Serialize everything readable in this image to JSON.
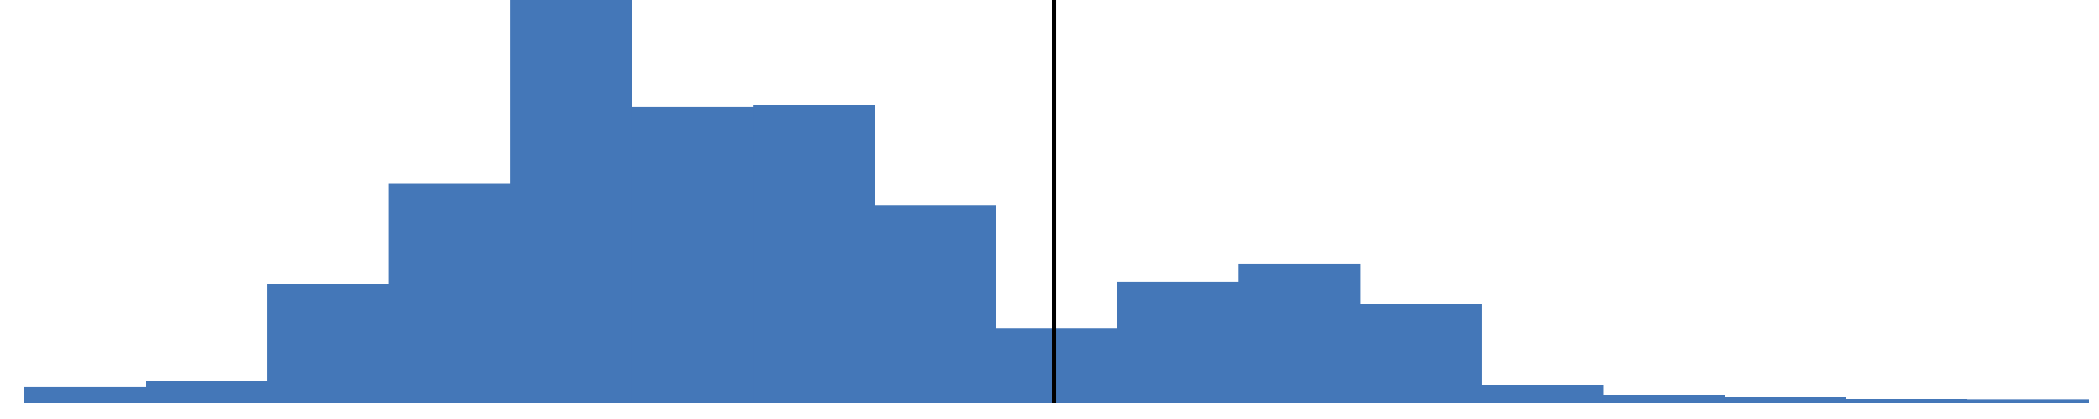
{
  "chart_data": {
    "type": "bar",
    "style": "histogram",
    "bar_color": "#4477B8",
    "marker_line_color": "#000000",
    "title": "",
    "xlabel": "",
    "ylabel": "",
    "grid": false,
    "ylim": [
      0,
      1.0
    ],
    "bins": [
      {
        "left": 0,
        "right": 1,
        "value": 0.04
      },
      {
        "left": 1,
        "right": 2,
        "value": 0.055
      },
      {
        "left": 2,
        "right": 3,
        "value": 0.295
      },
      {
        "left": 3,
        "right": 4,
        "value": 0.545
      },
      {
        "left": 4,
        "right": 5,
        "value": 1.0
      },
      {
        "left": 5,
        "right": 6,
        "value": 0.735
      },
      {
        "left": 6,
        "right": 7,
        "value": 0.74
      },
      {
        "left": 7,
        "right": 8,
        "value": 0.49
      },
      {
        "left": 8,
        "right": 9,
        "value": 0.185
      },
      {
        "left": 9,
        "right": 10,
        "value": 0.3
      },
      {
        "left": 10,
        "right": 11,
        "value": 0.345
      },
      {
        "left": 11,
        "right": 12,
        "value": 0.245
      },
      {
        "left": 12,
        "right": 13,
        "value": 0.045
      },
      {
        "left": 13,
        "right": 14,
        "value": 0.02
      },
      {
        "left": 14,
        "right": 15,
        "value": 0.015
      },
      {
        "left": 15,
        "right": 16,
        "value": 0.01
      },
      {
        "left": 16,
        "right": 17,
        "value": 0.008
      }
    ],
    "xlim": [
      0,
      17
    ],
    "vertical_marker": 8.48
  }
}
